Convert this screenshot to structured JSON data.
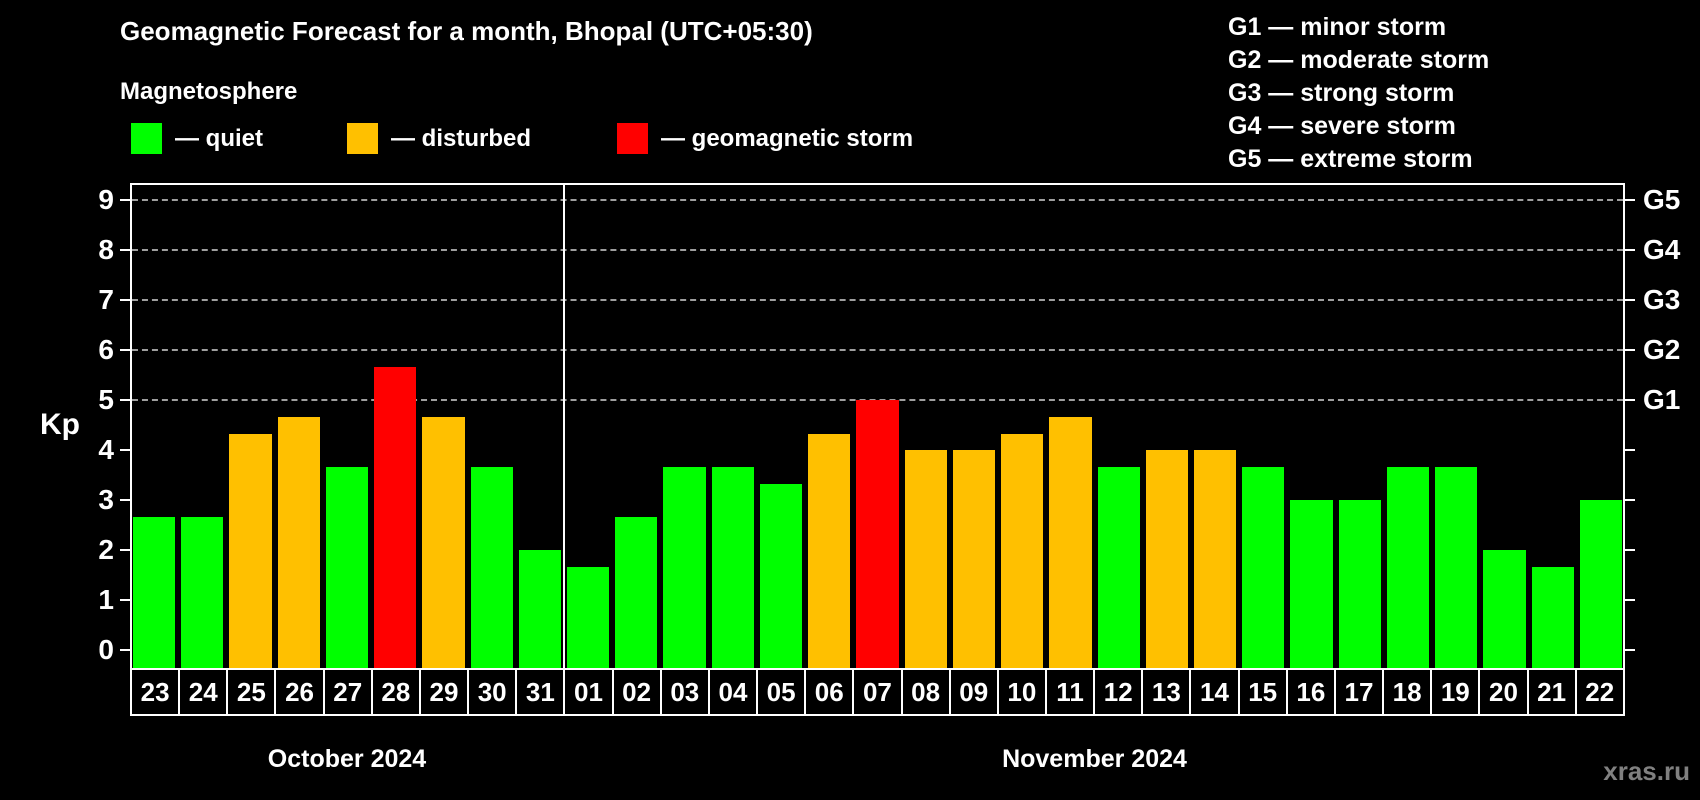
{
  "title": "Geomagnetic Forecast for a month, Bhopal (UTC+05:30)",
  "subtitle": "Magnetosphere",
  "legend": {
    "items": [
      {
        "label": "— quiet",
        "status": "quiet"
      },
      {
        "label": "— disturbed",
        "status": "disturbed"
      },
      {
        "label": "— geomagnetic storm",
        "status": "storm"
      }
    ]
  },
  "storm_scale_legend": [
    {
      "label": "G1 — minor storm"
    },
    {
      "label": "G2 — moderate storm"
    },
    {
      "label": "G3 — strong storm"
    },
    {
      "label": "G4 — severe storm"
    },
    {
      "label": "G5 — extreme storm"
    }
  ],
  "colors": {
    "quiet": "#00ff00",
    "disturbed": "#ffc000",
    "storm": "#ff0000",
    "grid": "#9e9e9e",
    "axis": "#ffffff",
    "background": "#000000",
    "watermark": "#808080"
  },
  "watermark": "xras.ru",
  "chart_data": {
    "type": "bar",
    "ylabel": "Kp",
    "ylim": [
      0,
      9
    ],
    "y_ticks": [
      0,
      1,
      2,
      3,
      4,
      5,
      6,
      7,
      8,
      9
    ],
    "gridlines_at_kp": [
      5,
      6,
      7,
      8,
      9
    ],
    "grid_style": "dashed",
    "legend_position": "top",
    "g_levels": [
      {
        "kp": 5,
        "label": "G1"
      },
      {
        "kp": 6,
        "label": "G2"
      },
      {
        "kp": 7,
        "label": "G3"
      },
      {
        "kp": 8,
        "label": "G4"
      },
      {
        "kp": 9,
        "label": "G5"
      }
    ],
    "months": [
      {
        "label": "October 2024",
        "days": [
          {
            "day": "23",
            "kp": 2.67,
            "status": "quiet"
          },
          {
            "day": "24",
            "kp": 2.67,
            "status": "quiet"
          },
          {
            "day": "25",
            "kp": 4.33,
            "status": "disturbed"
          },
          {
            "day": "26",
            "kp": 4.67,
            "status": "disturbed"
          },
          {
            "day": "27",
            "kp": 3.67,
            "status": "quiet"
          },
          {
            "day": "28",
            "kp": 5.67,
            "status": "storm"
          },
          {
            "day": "29",
            "kp": 4.67,
            "status": "disturbed"
          },
          {
            "day": "30",
            "kp": 3.67,
            "status": "quiet"
          },
          {
            "day": "31",
            "kp": 2.0,
            "status": "quiet"
          }
        ]
      },
      {
        "label": "November 2024",
        "days": [
          {
            "day": "01",
            "kp": 1.67,
            "status": "quiet"
          },
          {
            "day": "02",
            "kp": 2.67,
            "status": "quiet"
          },
          {
            "day": "03",
            "kp": 3.67,
            "status": "quiet"
          },
          {
            "day": "04",
            "kp": 3.67,
            "status": "quiet"
          },
          {
            "day": "05",
            "kp": 3.33,
            "status": "quiet"
          },
          {
            "day": "06",
            "kp": 4.33,
            "status": "disturbed"
          },
          {
            "day": "07",
            "kp": 5.0,
            "status": "storm"
          },
          {
            "day": "08",
            "kp": 4.0,
            "status": "disturbed"
          },
          {
            "day": "09",
            "kp": 4.0,
            "status": "disturbed"
          },
          {
            "day": "10",
            "kp": 4.33,
            "status": "disturbed"
          },
          {
            "day": "11",
            "kp": 4.67,
            "status": "disturbed"
          },
          {
            "day": "12",
            "kp": 3.67,
            "status": "quiet"
          },
          {
            "day": "13",
            "kp": 4.0,
            "status": "disturbed"
          },
          {
            "day": "14",
            "kp": 4.0,
            "status": "disturbed"
          },
          {
            "day": "15",
            "kp": 3.67,
            "status": "quiet"
          },
          {
            "day": "16",
            "kp": 3.0,
            "status": "quiet"
          },
          {
            "day": "17",
            "kp": 3.0,
            "status": "quiet"
          },
          {
            "day": "18",
            "kp": 3.67,
            "status": "quiet"
          },
          {
            "day": "19",
            "kp": 3.67,
            "status": "quiet"
          },
          {
            "day": "20",
            "kp": 2.0,
            "status": "quiet"
          },
          {
            "day": "21",
            "kp": 1.67,
            "status": "quiet"
          },
          {
            "day": "22",
            "kp": 3.0,
            "status": "quiet"
          }
        ]
      }
    ]
  }
}
